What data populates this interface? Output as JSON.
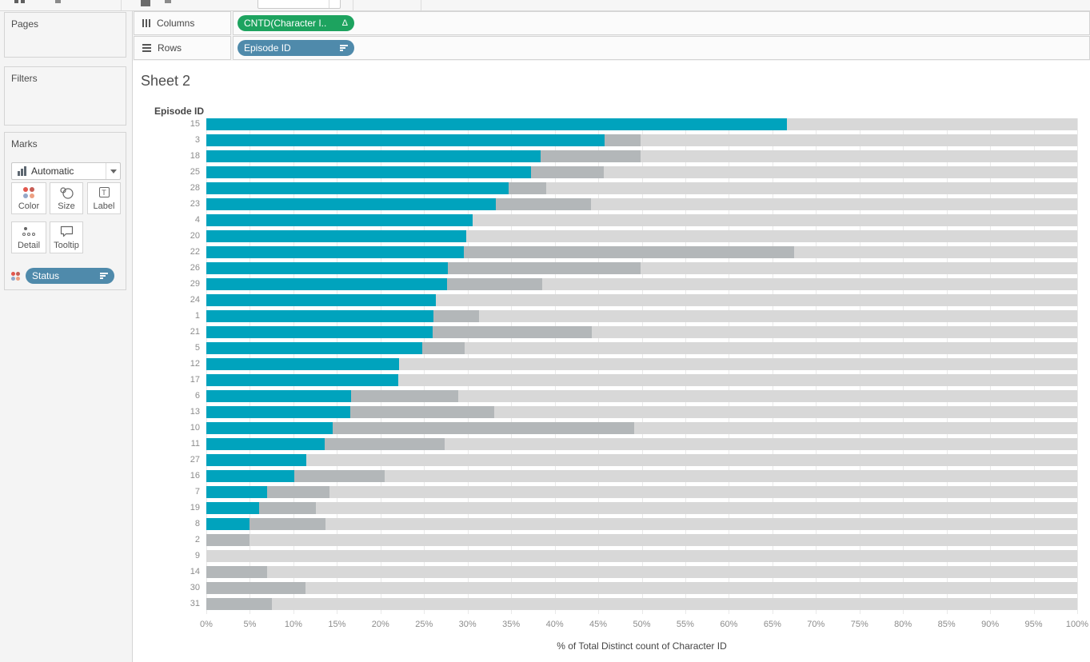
{
  "shelves": {
    "columns": {
      "label": "Columns",
      "icon": "columns-icon",
      "pill": {
        "label": "CNTD(Character I..",
        "badge": "Δ",
        "color": "#1da35f",
        "badge_icon": "delta-table-calc-icon"
      }
    },
    "rows": {
      "label": "Rows",
      "icon": "rows-icon",
      "pill": {
        "label": "Episode ID",
        "color": "#4f8aab",
        "icon": "sort-descending-icon"
      }
    }
  },
  "sidebar": {
    "pages": {
      "label": "Pages"
    },
    "filters": {
      "label": "Filters"
    },
    "marks": {
      "label": "Marks",
      "type_selector": {
        "value": "Automatic",
        "icon": "bar-chart-icon",
        "caret": "caret-down-icon"
      },
      "buttons": [
        {
          "label": "Color",
          "icon": "color-dots-icon"
        },
        {
          "label": "Size",
          "icon": "size-circles-icon"
        },
        {
          "label": "Label",
          "icon": "text-label-icon"
        },
        {
          "label": "Detail",
          "icon": "detail-dots-icon"
        },
        {
          "label": "Tooltip",
          "icon": "tooltip-bubble-icon"
        }
      ],
      "encoding_pill": {
        "label": "Status",
        "icon": "sort-descending-icon",
        "swatch": "color-dots-icon",
        "color": "#4f8aab"
      }
    }
  },
  "glyphs": {
    "delta": "Δ",
    "label_t": "T"
  },
  "sheet": {
    "title": "Sheet 2"
  },
  "chart_data": {
    "type": "bar",
    "orientation": "horizontal",
    "stacked": true,
    "row_axis_header": "Episode ID",
    "xlabel": "% of Total Distinct count of Character ID",
    "xlim": [
      0,
      100
    ],
    "x_ticks": [
      "0%",
      "5%",
      "10%",
      "15%",
      "20%",
      "25%",
      "30%",
      "35%",
      "40%",
      "45%",
      "50%",
      "55%",
      "60%",
      "65%",
      "70%",
      "75%",
      "80%",
      "85%",
      "90%",
      "95%",
      "100%"
    ],
    "grid": true,
    "colors": {
      "teal": "#00a3bd",
      "dark_gray": "#b3b7b9",
      "light_gray": "#d8d8d8"
    },
    "note": "Each row is a 100% stacked bar: teal_pct + dark_gray_pct + light-gray remainder = 100",
    "rows": [
      {
        "label": "15",
        "teal_pct": 66.7,
        "dark_gray_pct": 0
      },
      {
        "label": "3",
        "teal_pct": 45.7,
        "dark_gray_pct": 4.2
      },
      {
        "label": "18",
        "teal_pct": 38.4,
        "dark_gray_pct": 11.5
      },
      {
        "label": "25",
        "teal_pct": 37.3,
        "dark_gray_pct": 8.3
      },
      {
        "label": "28",
        "teal_pct": 34.7,
        "dark_gray_pct": 4.3
      },
      {
        "label": "23",
        "teal_pct": 33.2,
        "dark_gray_pct": 11.0
      },
      {
        "label": "4",
        "teal_pct": 30.6,
        "dark_gray_pct": 0
      },
      {
        "label": "20",
        "teal_pct": 29.8,
        "dark_gray_pct": 0
      },
      {
        "label": "22",
        "teal_pct": 29.6,
        "dark_gray_pct": 37.9
      },
      {
        "label": "26",
        "teal_pct": 27.7,
        "dark_gray_pct": 22.2
      },
      {
        "label": "29",
        "teal_pct": 27.6,
        "dark_gray_pct": 11.0
      },
      {
        "label": "24",
        "teal_pct": 26.4,
        "dark_gray_pct": 0
      },
      {
        "label": "1",
        "teal_pct": 26.1,
        "dark_gray_pct": 5.2
      },
      {
        "label": "21",
        "teal_pct": 26.0,
        "dark_gray_pct": 18.3
      },
      {
        "label": "5",
        "teal_pct": 24.8,
        "dark_gray_pct": 4.9
      },
      {
        "label": "12",
        "teal_pct": 22.1,
        "dark_gray_pct": 0
      },
      {
        "label": "17",
        "teal_pct": 22.0,
        "dark_gray_pct": 0
      },
      {
        "label": "6",
        "teal_pct": 16.6,
        "dark_gray_pct": 12.3
      },
      {
        "label": "13",
        "teal_pct": 16.5,
        "dark_gray_pct": 16.6
      },
      {
        "label": "10",
        "teal_pct": 14.5,
        "dark_gray_pct": 34.6
      },
      {
        "label": "11",
        "teal_pct": 13.6,
        "dark_gray_pct": 13.8
      },
      {
        "label": "27",
        "teal_pct": 11.5,
        "dark_gray_pct": 0
      },
      {
        "label": "16",
        "teal_pct": 10.1,
        "dark_gray_pct": 10.4
      },
      {
        "label": "7",
        "teal_pct": 7.0,
        "dark_gray_pct": 7.1
      },
      {
        "label": "19",
        "teal_pct": 6.1,
        "dark_gray_pct": 6.5
      },
      {
        "label": "8",
        "teal_pct": 5.0,
        "dark_gray_pct": 8.7
      },
      {
        "label": "2",
        "teal_pct": 0,
        "dark_gray_pct": 5.0
      },
      {
        "label": "9",
        "teal_pct": 0,
        "dark_gray_pct": 0
      },
      {
        "label": "14",
        "teal_pct": 0,
        "dark_gray_pct": 7.0
      },
      {
        "label": "30",
        "teal_pct": 0,
        "dark_gray_pct": 11.4
      },
      {
        "label": "31",
        "teal_pct": 0,
        "dark_gray_pct": 7.5
      }
    ]
  }
}
